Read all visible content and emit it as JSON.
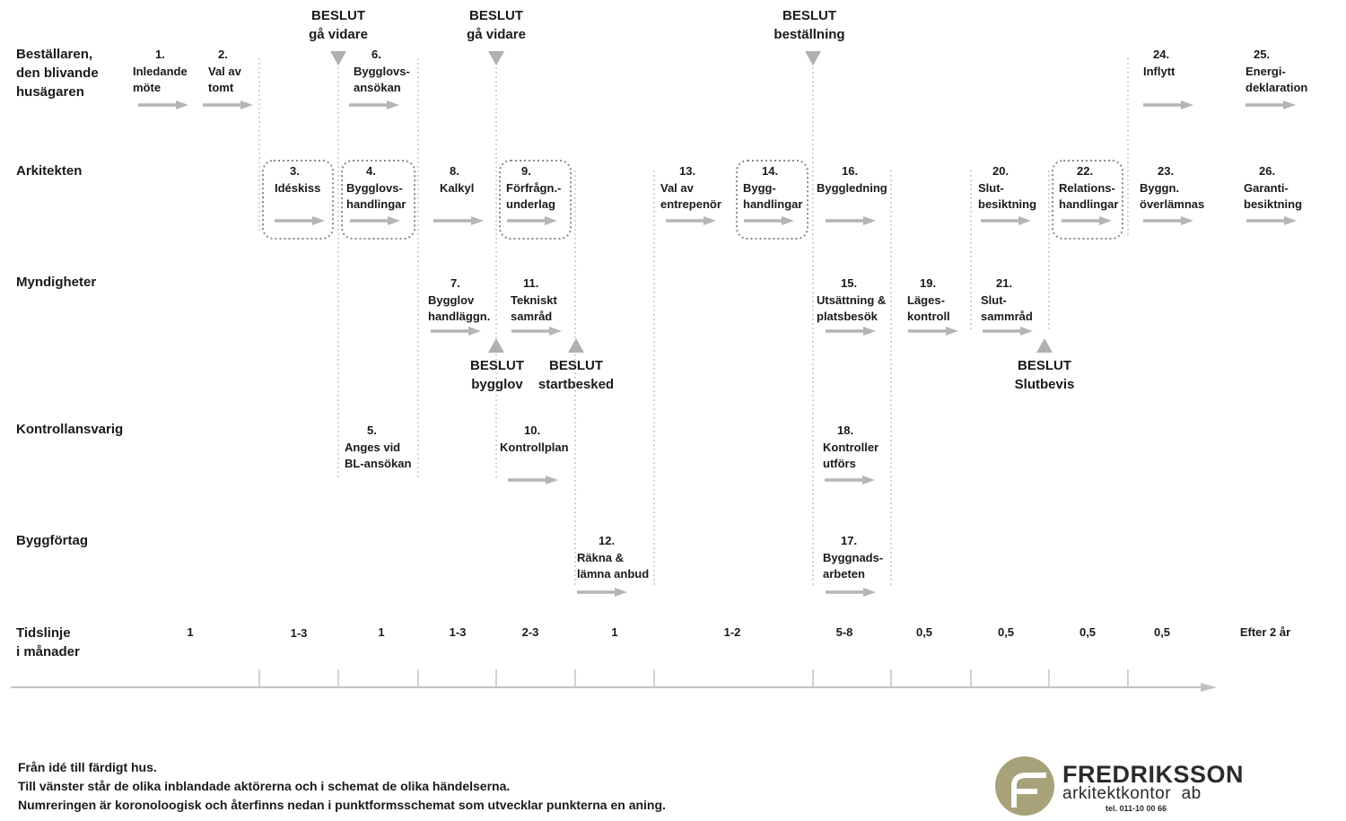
{
  "roles": [
    {
      "label": "Beställaren,\nden blivande\nhusägaren"
    },
    {
      "label": "Arkitekten"
    },
    {
      "label": "Myndigheter"
    },
    {
      "label": "Kontrollansvarig"
    },
    {
      "label": "Byggförtag"
    }
  ],
  "steps": [
    {
      "num": "1.",
      "label": "Inledande\nmöte"
    },
    {
      "num": "2.",
      "label": "Val av\ntomt"
    },
    {
      "num": "3.",
      "label": "Idéskiss"
    },
    {
      "num": "4.",
      "label": "Bygglovs-\nhandlingar"
    },
    {
      "num": "5.",
      "label": "Anges vid\nBL-ansökan"
    },
    {
      "num": "6.",
      "label": "Bygglovs-\nansökan"
    },
    {
      "num": "7.",
      "label": "Bygglov\nhandläggn."
    },
    {
      "num": "8.",
      "label": "Kalkyl"
    },
    {
      "num": "9.",
      "label": "Förfrågn.-\nunderlag"
    },
    {
      "num": "10.",
      "label": "Kontrollplan"
    },
    {
      "num": "11.",
      "label": "Tekniskt\nsamråd"
    },
    {
      "num": "12.",
      "label": "Räkna &\nlämna anbud"
    },
    {
      "num": "13.",
      "label": "Val av\nentrepenör"
    },
    {
      "num": "14.",
      "label": "Bygg-\nhandlingar"
    },
    {
      "num": "15.",
      "label": "Utsättning &\nplatsbesök"
    },
    {
      "num": "16.",
      "label": "Byggledning"
    },
    {
      "num": "17.",
      "label": "Byggnads-\narbeten"
    },
    {
      "num": "18.",
      "label": "Kontroller\nutförs"
    },
    {
      "num": "19.",
      "label": "Läges-\nkontroll"
    },
    {
      "num": "20.",
      "label": "Slut-\nbesiktning"
    },
    {
      "num": "21.",
      "label": "Slut-\nsammråd"
    },
    {
      "num": "22.",
      "label": "Relations-\nhandlingar"
    },
    {
      "num": "23.",
      "label": "Byggn.\növerlämnas"
    },
    {
      "num": "24.",
      "label": "Inflytt"
    },
    {
      "num": "25.",
      "label": "Energi-\ndeklaration"
    },
    {
      "num": "26.",
      "label": "Garanti-\nbesiktning"
    }
  ],
  "decisions": [
    {
      "label": "BESLUT\ngå vidare"
    },
    {
      "label": "BESLUT\ngå vidare"
    },
    {
      "label": "BESLUT\nbeställning"
    },
    {
      "label": "BESLUT\nbygglov"
    },
    {
      "label": "BESLUT\nstartbesked"
    },
    {
      "label": "BESLUT\nSlutbevis"
    }
  ],
  "timeline": {
    "label": "Tidslinje\ni månader",
    "durations": [
      "1",
      "1-3",
      "1",
      "1-3",
      "2-3",
      "1",
      "1-2",
      "5-8",
      "0,5",
      "0,5",
      "0,5",
      "0,5",
      "Efter 2 år"
    ]
  },
  "footer": {
    "lines": [
      "Från idé till färdigt hus.",
      "Till vänster står de olika inblandade aktörerna och i schemat de olika händelserna.",
      "Numreringen är koronoloogisk och återfinns nedan i punktformsschemat som utvecklar punkterna en aning."
    ]
  },
  "logo": {
    "name": "FREDRIKSSON",
    "sub": "arkitektkontor  ab",
    "tel": "tel. 011-10 00 66"
  },
  "colors": {
    "arrow": "#b5b5b5",
    "divider": "#b8b8b8",
    "box_border": "#8a8a8a",
    "triangle": "#b0b0b0",
    "logo_circle": "#a8a27a"
  }
}
